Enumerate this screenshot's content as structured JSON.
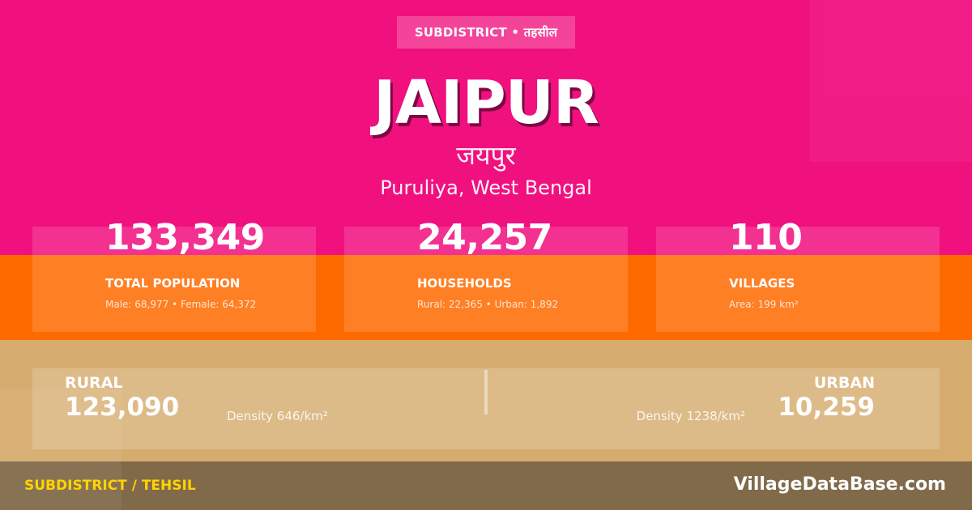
{
  "badge": "SUBDISTRICT • तहसील",
  "title": "JAIPUR",
  "local_name": "जयपुर",
  "location": "Puruliya, West Bengal",
  "stats": [
    {
      "value": "133,349",
      "label": "TOTAL POPULATION",
      "sub": "Male: 68,977 • Female: 64,372"
    },
    {
      "value": "24,257",
      "label": "HOUSEHOLDS",
      "sub": "Rural: 22,365 • Urban: 1,892"
    },
    {
      "value": "110",
      "label": "VILLAGES",
      "sub": "Area: 199 km²"
    }
  ],
  "rural": {
    "label": "RURAL",
    "value": "123,090",
    "density": "Density 646/km²"
  },
  "urban": {
    "label": "URBAN",
    "value": "10,259",
    "density": "Density 1238/km²"
  },
  "footer": {
    "left": "SUBDISTRICT / TEHSIL",
    "right": "VillageDataBase.com"
  },
  "colors": {
    "pink": "#f0107e",
    "orange": "#ff6a00",
    "tan": "#d6ac6e",
    "footer_bg": "#816a4a",
    "footer_accent": "#ffd400"
  }
}
